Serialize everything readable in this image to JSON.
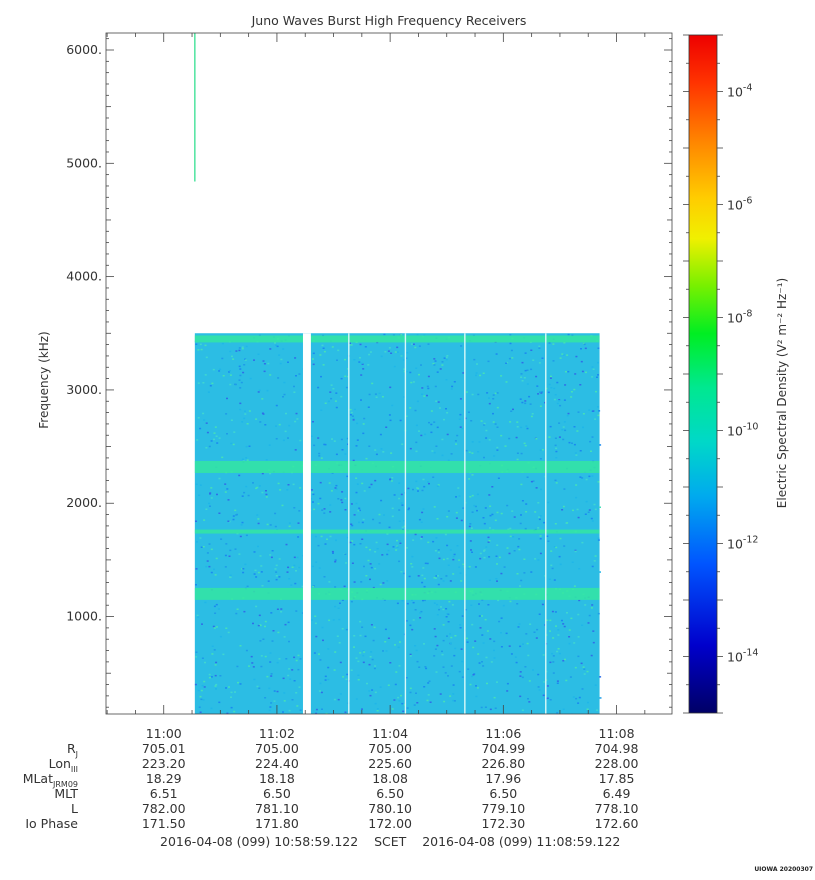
{
  "chart_data": {
    "type": "heatmap",
    "title": "Juno Waves Burst High Frequency Receivers",
    "ylabel": "Frequency (kHz)",
    "y_ticks": [
      "1000.",
      "2000.",
      "3000.",
      "4000.",
      "5000.",
      "6000."
    ],
    "y_tick_values": [
      1000,
      2000,
      3000,
      4000,
      5000,
      6000
    ],
    "ylim": [
      140,
      6150
    ],
    "x_ticks": [
      "11:00",
      "11:02",
      "11:04",
      "11:06",
      "11:08"
    ],
    "x_tick_minutes": [
      0,
      2,
      4,
      6,
      8
    ],
    "xlim_minutes": [
      -1.02,
      8.98
    ],
    "spectrogram": {
      "start_min": 0.55,
      "end_min": 7.7,
      "freq_min": 140,
      "freq_max": 3500,
      "gap": [
        2.46,
        2.6
      ],
      "thin_gaps": [
        3.27,
        4.27,
        5.32,
        6.75
      ],
      "bright_bands_khz": [
        3450,
        2320,
        1750,
        1200
      ],
      "spike": {
        "minute": 0.55,
        "freq_from": 4840,
        "freq_to": 6150
      }
    },
    "colorbar": {
      "label": "Electric Spectral Density (V² m⁻² Hz⁻¹)",
      "log_min": -15,
      "log_max": -3,
      "tick_labels": [
        "10",
        "10",
        "10",
        "10",
        "10",
        "10"
      ],
      "tick_exponents": [
        "-14",
        "-12",
        "-10",
        "-8",
        "-6",
        "-4"
      ],
      "tick_values": [
        -14,
        -12,
        -10,
        -8,
        -6,
        -4
      ]
    }
  },
  "ephemeris": {
    "labels": {
      "rj": "R",
      "rj_sub": "J",
      "lon": "Lon",
      "lon_sub": "III",
      "mlat": "MLat",
      "mlat_sub": "JRM09",
      "mlt": "MLT",
      "l": "L",
      "io": "Io Phase"
    },
    "rows": [
      {
        "key": "rj",
        "values": [
          "705.01",
          "705.00",
          "705.00",
          "704.99",
          "704.98"
        ]
      },
      {
        "key": "lon",
        "values": [
          "223.20",
          "224.40",
          "225.60",
          "226.80",
          "228.00"
        ]
      },
      {
        "key": "mlat",
        "values": [
          "18.29",
          "18.18",
          "18.08",
          "17.96",
          "17.85"
        ]
      },
      {
        "key": "mlt",
        "values": [
          "6.51",
          "6.50",
          "6.50",
          "6.50",
          "6.49"
        ]
      },
      {
        "key": "l",
        "values": [
          "782.00",
          "781.10",
          "780.10",
          "779.10",
          "778.10"
        ]
      },
      {
        "key": "io",
        "values": [
          "171.50",
          "171.80",
          "172.00",
          "172.30",
          "172.60"
        ]
      }
    ]
  },
  "time_span": {
    "start": "2016-04-08 (099) 10:58:59.122",
    "scet": "SCET",
    "end": "2016-04-08 (099) 11:08:59.122"
  },
  "credit": "UIOWA 20200307"
}
